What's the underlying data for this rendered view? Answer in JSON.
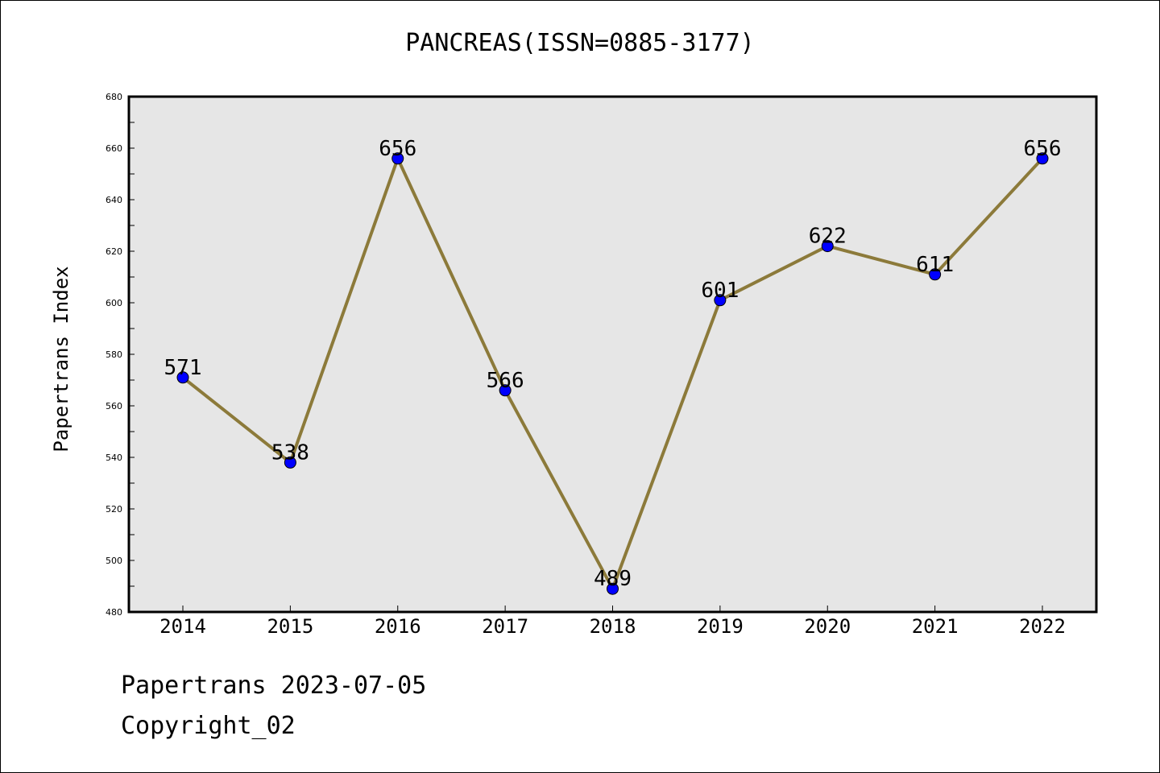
{
  "title": "PANCREAS(ISSN=0885-3177)",
  "footer": {
    "line1": "Papertrans 2023-07-05",
    "line2": "Copyright_02"
  },
  "colors": {
    "plot_background": "#e6e6e6",
    "line": "#8c7a3a",
    "marker": "#0000ff",
    "axis": "#000000"
  },
  "chart_data": {
    "type": "line",
    "title": "PANCREAS(ISSN=0885-3177)",
    "xlabel": "",
    "ylabel": "Papertrans Index",
    "categories": [
      "2014",
      "2015",
      "2016",
      "2017",
      "2018",
      "2019",
      "2020",
      "2021",
      "2022"
    ],
    "series": [
      {
        "values": [
          571,
          538,
          656,
          566,
          489,
          601,
          622,
          611,
          656
        ]
      }
    ],
    "data_labels": [
      "571",
      "538",
      "656",
      "566",
      "489",
      "601",
      "622",
      "611",
      "656"
    ],
    "ylim": [
      480,
      680
    ],
    "yticks": [
      "480",
      "500",
      "520",
      "540",
      "560",
      "580",
      "600",
      "620",
      "640",
      "660",
      "680"
    ],
    "grid": false,
    "legend": "none"
  }
}
